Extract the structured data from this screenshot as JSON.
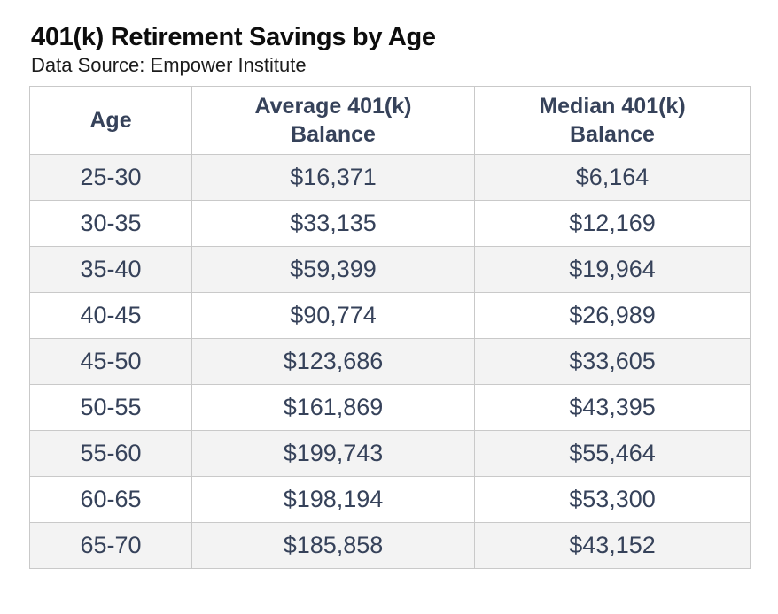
{
  "page": {
    "title": "401(k) Retirement Savings by Age",
    "subtitle": "Data Source: Empower Institute"
  },
  "colors": {
    "table_text": "#36425a",
    "title_text": "#0d0d0d",
    "alt_row_bg": "#f3f3f3",
    "row_bg": "#ffffff",
    "border": "#c9c9c9"
  },
  "table": {
    "headers": {
      "age": "Age",
      "average": "Average 401(k)\nBalance",
      "median": "Median 401(k)\nBalance"
    }
  },
  "chart_data": {
    "type": "table",
    "title": "401(k) Retirement Savings by Age",
    "source_note": "Data Source: Empower Institute",
    "columns": [
      "Age",
      "Average 401(k) Balance",
      "Median 401(k) Balance"
    ],
    "rows": [
      {
        "age": "25-30",
        "average": "$16,371",
        "median": "$6,164"
      },
      {
        "age": "30-35",
        "average": "$33,135",
        "median": "$12,169"
      },
      {
        "age": "35-40",
        "average": "$59,399",
        "median": "$19,964"
      },
      {
        "age": "40-45",
        "average": "$90,774",
        "median": "$26,989"
      },
      {
        "age": "45-50",
        "average": "$123,686",
        "median": "$33,605"
      },
      {
        "age": "50-55",
        "average": "$161,869",
        "median": "$43,395"
      },
      {
        "age": "55-60",
        "average": "$199,743",
        "median": "$55,464"
      },
      {
        "age": "60-65",
        "average": "$198,194",
        "median": "$53,300"
      },
      {
        "age": "65-70",
        "average": "$185,858",
        "median": "$43,152"
      }
    ],
    "rows_numeric": {
      "average_balance_usd": [
        16371,
        33135,
        59399,
        90774,
        123686,
        161869,
        199743,
        198194,
        185858
      ],
      "median_balance_usd": [
        6164,
        12169,
        19964,
        26989,
        33605,
        43395,
        55464,
        53300,
        43152
      ]
    }
  }
}
